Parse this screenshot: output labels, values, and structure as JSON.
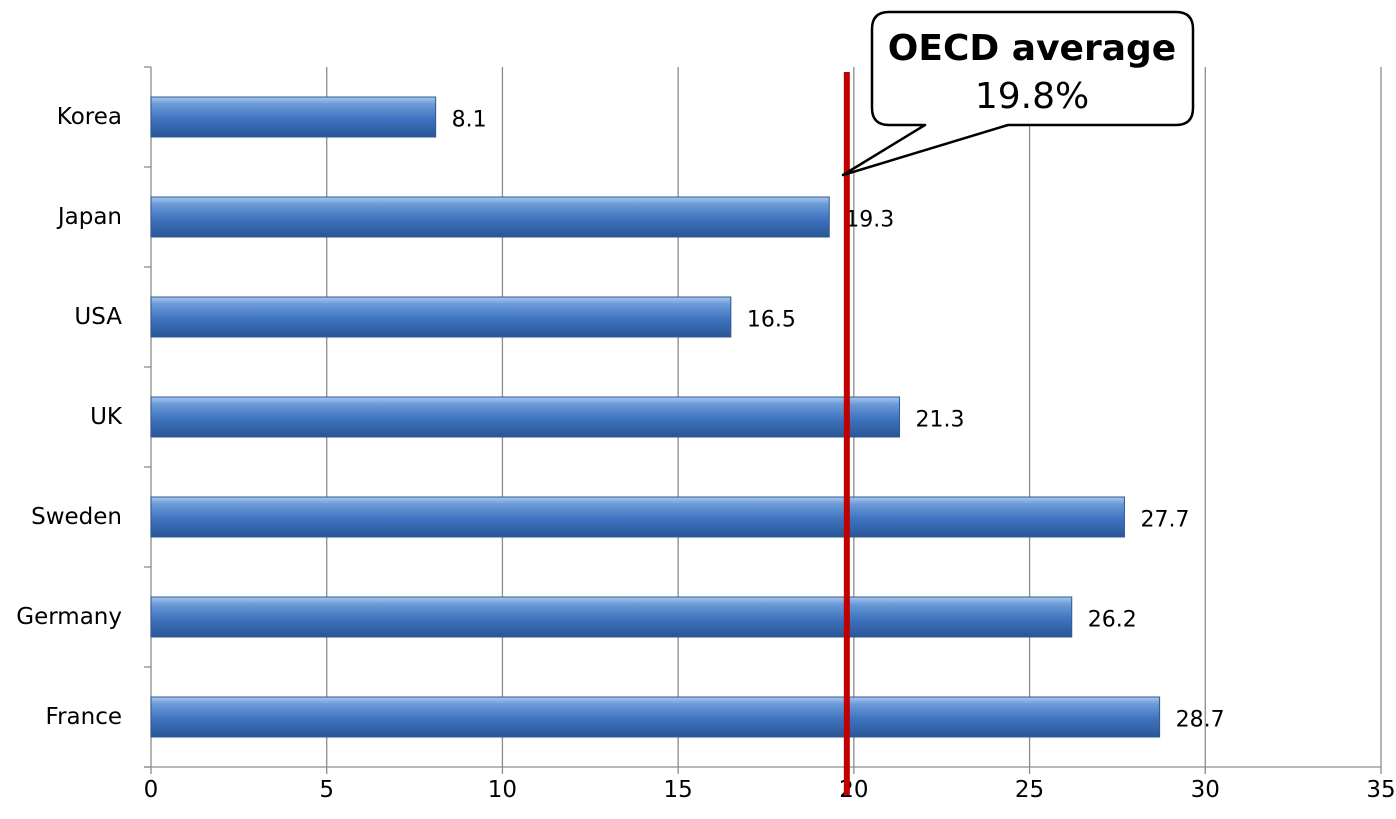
{
  "chart_data": {
    "type": "bar",
    "orientation": "horizontal",
    "categories": [
      "Korea",
      "Japan",
      "USA",
      "UK",
      "Sweden",
      "Germany",
      "France"
    ],
    "values": [
      8.1,
      19.3,
      16.5,
      21.3,
      27.7,
      26.2,
      28.7
    ],
    "data_labels": [
      "8.1",
      "19.3",
      "16.5",
      "21.3",
      "27.7",
      "26.2",
      "28.7"
    ],
    "xlim": [
      0,
      35
    ],
    "x_ticks": [
      0,
      5,
      10,
      15,
      20,
      25,
      30,
      35
    ],
    "x_tick_labels": [
      "0",
      "5",
      "10",
      "15",
      "20",
      "25",
      "30",
      "35"
    ],
    "grid": "vertical",
    "bar_color": "#4f81bd",
    "reference_line": {
      "value": 19.8,
      "color": "#c00000"
    },
    "annotation": {
      "title": "OECD average",
      "value": "19.8%"
    }
  }
}
